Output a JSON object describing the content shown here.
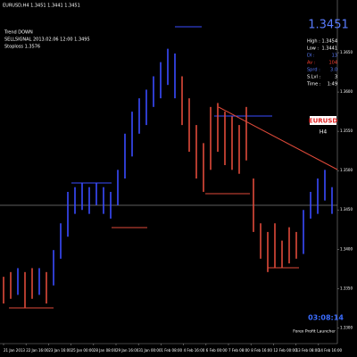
{
  "header": {
    "symbol": "EURUSD,H4  1.3451 1.3441 1.3451",
    "lines": [
      "Trend DOWN",
      "SELLSIGNAL 2013.02.06 12:00 1.3495",
      "Stoploss 1.3576"
    ]
  },
  "panel": {
    "price": "1.3451",
    "rows": [
      [
        "High :",
        "1.3454"
      ],
      [
        "Low :",
        "1.3441"
      ],
      [
        "DI :",
        "13"
      ],
      [
        "Av :",
        "104"
      ],
      [
        "Sprd :",
        "3.0"
      ],
      [
        "S.Lvl :",
        "3"
      ],
      [
        "Time :",
        "1:49"
      ]
    ],
    "symbol": "EURUSD",
    "period": "H4",
    "timer": "03:08:14",
    "brand": "Forex Profit Launcher"
  },
  "chart_data": {
    "type": "range-bar",
    "high": [
      1.3365,
      1.3371,
      1.3376,
      1.3371,
      1.3376,
      1.3376,
      1.3371,
      1.3399,
      1.3433,
      1.3473,
      1.3479,
      1.3484,
      1.3479,
      1.3484,
      1.3479,
      1.3473,
      1.3501,
      1.3547,
      1.3575,
      1.3592,
      1.3603,
      1.362,
      1.3638,
      1.3655,
      1.3649,
      1.362,
      1.3592,
      1.3558,
      1.3535,
      1.3581,
      1.3586,
      1.3575,
      1.3569,
      1.3558,
      1.3581,
      1.349,
      1.3433,
      1.3422,
      1.3433,
      1.3411,
      1.3428,
      1.3422,
      1.345,
      1.3473,
      1.349,
      1.3501,
      1.3479
    ],
    "low": [
      1.3331,
      1.3337,
      1.3342,
      1.3325,
      1.3337,
      1.3342,
      1.3331,
      1.3354,
      1.3388,
      1.3416,
      1.3445,
      1.345,
      1.3445,
      1.3456,
      1.3445,
      1.3439,
      1.3456,
      1.349,
      1.3518,
      1.3547,
      1.3558,
      1.3581,
      1.3592,
      1.3609,
      1.3592,
      1.3558,
      1.3524,
      1.349,
      1.3473,
      1.3501,
      1.3524,
      1.3507,
      1.3501,
      1.3496,
      1.3513,
      1.3422,
      1.3388,
      1.3371,
      1.3376,
      1.3376,
      1.3382,
      1.3388,
      1.3394,
      1.3439,
      1.3445,
      1.3462,
      1.3445
    ],
    "colors": [
      "#e04a3a",
      "#e04a3a",
      "#3a4cff",
      "#e04a3a",
      "#e04a3a",
      "#3a4cff",
      "#e04a3a",
      "#3a4cff",
      "#3a4cff",
      "#3a4cff",
      "#3a4cff",
      "#3a4cff",
      "#3a4cff",
      "#3a4cff",
      "#3a4cff",
      "#3a4cff",
      "#3a4cff",
      "#3a4cff",
      "#3a4cff",
      "#3a4cff",
      "#3a4cff",
      "#3a4cff",
      "#3a4cff",
      "#3a4cff",
      "#3a4cff",
      "#e04a3a",
      "#e04a3a",
      "#e04a3a",
      "#e04a3a",
      "#e04a3a",
      "#e04a3a",
      "#e04a3a",
      "#e04a3a",
      "#e04a3a",
      "#e04a3a",
      "#e04a3a",
      "#e04a3a",
      "#e04a3a",
      "#e04a3a",
      "#e04a3a",
      "#e04a3a",
      "#e04a3a",
      "#3a4cff",
      "#3a4cff",
      "#3a4cff",
      "#3a4cff",
      "#3a4cff"
    ],
    "categories": [
      "21 Jan 2013",
      "22 Jan 16:00",
      "23 Jan 16:00",
      "25 Jan 00:00",
      "28 Jan 08:00",
      "29 Jan 16:00",
      "31 Jan 00:00",
      "1 Feb 08:00",
      "4 Feb 16:00",
      "6 Feb 00:00",
      "7 Feb 08:00",
      "8 Feb 16:00",
      "12 Feb 00:00",
      "13 Feb 08:00",
      "14 Feb 16:00"
    ],
    "ylim": [
      1.328,
      1.37
    ],
    "yticks": [
      {
        "value": 1.33,
        "label": "1.3300"
      },
      {
        "value": 1.335,
        "label": "1.3350"
      },
      {
        "value": 1.34,
        "label": "1.3400"
      },
      {
        "value": 1.345,
        "label": "1.3450"
      },
      {
        "value": 1.35,
        "label": "1.3500"
      },
      {
        "value": 1.355,
        "label": "1.3550"
      },
      {
        "value": 1.36,
        "label": "1.3600"
      },
      {
        "value": 1.365,
        "label": "1.3650"
      }
    ]
  }
}
